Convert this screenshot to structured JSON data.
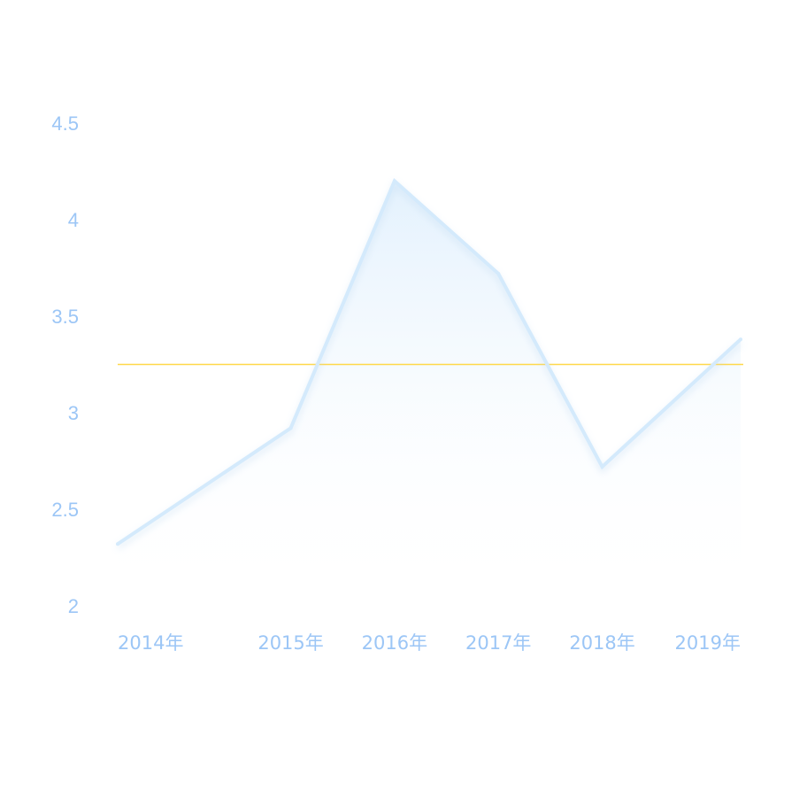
{
  "chart_data": {
    "type": "area",
    "categories": [
      "2014年",
      "2015年",
      "2016年",
      "2017年",
      "2018年",
      "2019年"
    ],
    "x": [
      2014,
      2015.25,
      2016,
      2016.75,
      2017.5,
      2018.5
    ],
    "series": [
      {
        "values": [
          2.32,
          2.92,
          4.2,
          3.72,
          2.72,
          3.38
        ]
      }
    ],
    "reference_line": {
      "value": 3.25
    },
    "y_ticks": [
      "4.5",
      "4",
      "3.5",
      "3",
      "2.5",
      "2"
    ],
    "y_tick_values": [
      4.5,
      4,
      3.5,
      3,
      2.5,
      2
    ],
    "ylim": [
      2,
      4.5
    ],
    "grid": false,
    "colors": {
      "line": "#d4eafc",
      "area_top": "#e3f1fd",
      "area_bottom": "#ffffff",
      "reference_line": "#ffd84a",
      "tick_text": "#9cc6f6"
    }
  }
}
